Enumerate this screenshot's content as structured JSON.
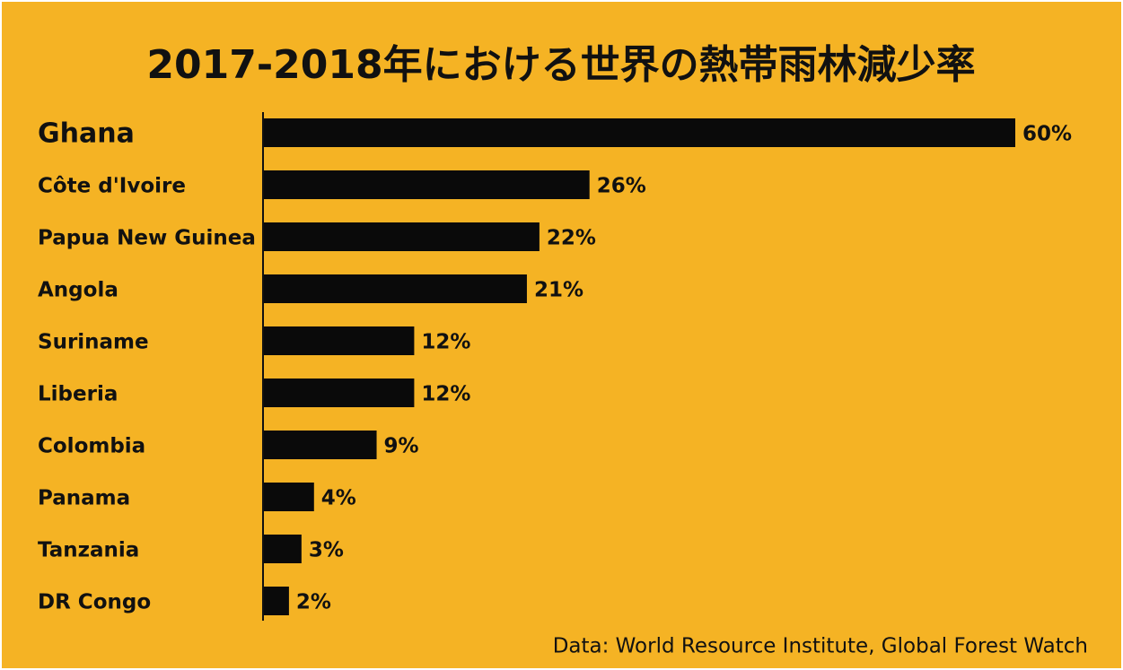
{
  "chart_data": {
    "type": "bar",
    "orientation": "horizontal",
    "title": "2017-2018年における世界の熱帯雨林減少率",
    "categories": [
      "Ghana",
      "Côte d'Ivoire",
      "Papua New Guinea",
      "Angola",
      "Suriname",
      "Liberia",
      "Colombia",
      "Panama",
      "Tanzania",
      "DR Congo"
    ],
    "values": [
      60,
      26,
      22,
      21,
      12,
      12,
      9,
      4,
      3,
      2
    ],
    "value_labels": [
      "60%",
      "26%",
      "22%",
      "21%",
      "12%",
      "12%",
      "9%",
      "4%",
      "3%",
      "2%"
    ],
    "color": "#0a0a0a",
    "source": "Data: World Resource Institute, Global Forest Watch"
  }
}
